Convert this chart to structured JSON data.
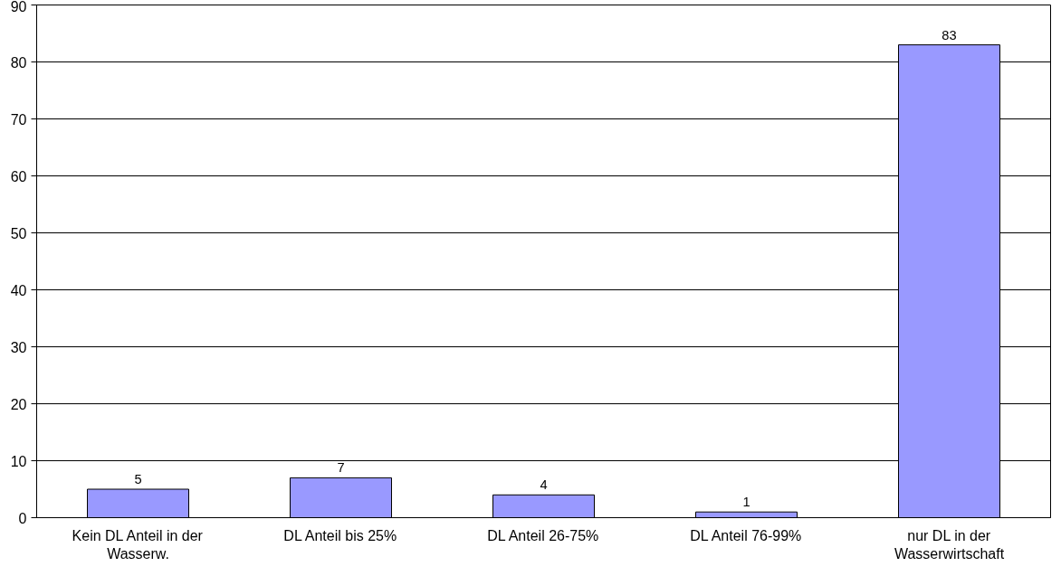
{
  "chart_data": {
    "type": "bar",
    "categories": [
      "Kein DL Anteil in der Wasserw.",
      "DL Anteil bis 25%",
      "DL Anteil 26-75%",
      "DL Anteil 76-99%",
      "nur DL in der Wasserwirtschaft"
    ],
    "values": [
      5,
      7,
      4,
      1,
      83
    ],
    "color": "#9999ff",
    "ylim": [
      0,
      90
    ],
    "yticks": [
      0,
      10,
      20,
      30,
      40,
      50,
      60,
      70,
      80,
      90
    ],
    "grid": "y",
    "data_labels": true
  }
}
